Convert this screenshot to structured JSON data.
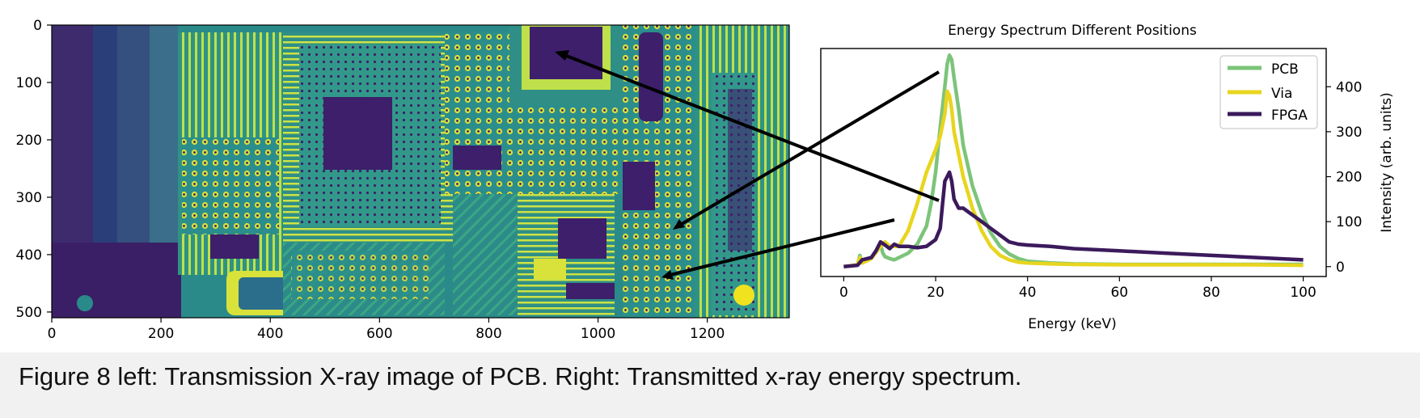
{
  "colors": {
    "pcb": "#7cc47a",
    "via": "#e8d51e",
    "fpga": "#3b1a5c",
    "image_dark": "#3d1f6b",
    "image_mid": "#2b8e8c",
    "image_bright": "#d8e23a",
    "arrow": "#000000"
  },
  "caption": "Figure 8 left: Transmission X-ray image of PCB. Right: Transmitted x-ray energy spectrum.",
  "chart_data": [
    {
      "type": "heatmap",
      "title": "",
      "xlabel": "",
      "ylabel": "",
      "xlim": [
        0,
        1350
      ],
      "ylim": [
        510,
        0
      ],
      "x_ticks": [
        "0",
        "200",
        "400",
        "600",
        "800",
        "1000",
        "1200"
      ],
      "y_ticks": [
        "0",
        "100",
        "200",
        "300",
        "400",
        "500"
      ],
      "x_tick_values": [
        0,
        200,
        400,
        600,
        800,
        1000,
        1200
      ],
      "y_tick_values": [
        0,
        100,
        200,
        300,
        400,
        500
      ],
      "colormap": "viridis"
    },
    {
      "type": "line",
      "title": "Energy Spectrum Different Positions",
      "xlabel": "Energy (keV)",
      "ylabel": "Intensity (arb. units)",
      "xlim": [
        -5,
        105
      ],
      "ylim": [
        -22,
        485
      ],
      "x_ticks": [
        "0",
        "20",
        "40",
        "60",
        "80",
        "100"
      ],
      "y_ticks": [
        "0",
        "100",
        "200",
        "300",
        "400"
      ],
      "x_tick_values": [
        0,
        20,
        40,
        60,
        80,
        100
      ],
      "y_tick_values": [
        0,
        100,
        200,
        300,
        400
      ],
      "y_axis_side": "right",
      "legend_position": "top-right",
      "series": [
        {
          "name": "PCB",
          "x": [
            0,
            3,
            3.5,
            4,
            6,
            7,
            8,
            8.5,
            9,
            10,
            11,
            12,
            14,
            16,
            18,
            19,
            20,
            21,
            22,
            22.5,
            23,
            23.5,
            24,
            25,
            26,
            28,
            30,
            32,
            34,
            36,
            38,
            40,
            45,
            50,
            60,
            70,
            80,
            90,
            100
          ],
          "y": [
            0,
            4,
            25,
            8,
            20,
            35,
            50,
            30,
            22,
            18,
            15,
            20,
            30,
            50,
            90,
            140,
            210,
            310,
            400,
            450,
            470,
            460,
            420,
            350,
            270,
            180,
            120,
            75,
            45,
            28,
            18,
            12,
            8,
            6,
            5,
            5,
            5,
            5,
            5
          ]
        },
        {
          "name": "Via",
          "x": [
            0,
            3,
            3.5,
            4,
            6,
            8,
            9,
            10,
            12,
            14,
            16,
            18,
            20,
            21,
            22,
            22.5,
            23,
            23.5,
            24,
            25,
            26,
            28,
            30,
            32,
            34,
            36,
            38,
            40,
            45,
            50,
            60,
            70,
            80,
            90,
            100
          ],
          "y": [
            0,
            4,
            20,
            8,
            18,
            45,
            55,
            45,
            45,
            80,
            140,
            210,
            260,
            290,
            340,
            390,
            380,
            350,
            300,
            250,
            200,
            130,
            80,
            45,
            25,
            15,
            10,
            8,
            6,
            5,
            4,
            4,
            4,
            4,
            3
          ]
        },
        {
          "name": "FPGA",
          "x": [
            0,
            3,
            4,
            6,
            7,
            8,
            9,
            10,
            11,
            12,
            14,
            16,
            18,
            20,
            21,
            21.5,
            22,
            22.5,
            23,
            23.5,
            24,
            25,
            26,
            28,
            30,
            32,
            34,
            36,
            38,
            40,
            45,
            50,
            60,
            70,
            80,
            90,
            100
          ],
          "y": [
            0,
            3,
            15,
            20,
            35,
            55,
            48,
            40,
            50,
            45,
            45,
            42,
            45,
            60,
            85,
            140,
            190,
            200,
            210,
            190,
            150,
            130,
            130,
            115,
            100,
            85,
            70,
            55,
            50,
            48,
            45,
            40,
            35,
            30,
            25,
            20,
            15
          ]
        }
      ]
    }
  ]
}
